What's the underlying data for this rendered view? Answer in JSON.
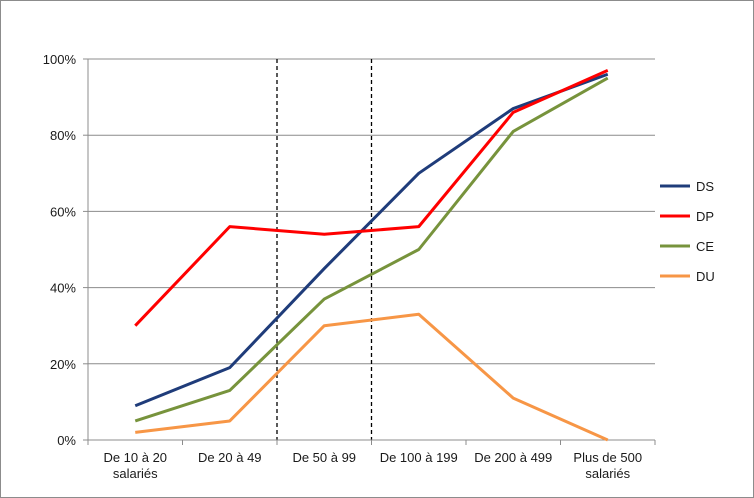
{
  "chart_data": {
    "type": "line",
    "title": "",
    "xlabel": "",
    "ylabel": "",
    "ylim": [
      0,
      100
    ],
    "y_ticks": [
      0,
      20,
      40,
      60,
      80,
      100
    ],
    "y_tick_suffix": "%",
    "grid": true,
    "legend_position": "right",
    "categories": [
      [
        "De 10 à 20",
        "salariés"
      ],
      [
        "De 20 à 49"
      ],
      [
        "De 50 à 99"
      ],
      [
        "De 100 à 199"
      ],
      [
        "De 200 à 499"
      ],
      [
        "Plus de 500",
        "salariés"
      ]
    ],
    "vertical_markers_between": [
      [
        1,
        2
      ],
      [
        2,
        3
      ]
    ],
    "series": [
      {
        "name": "DS",
        "color": "#1f3c7a",
        "values": [
          9,
          19,
          45,
          70,
          87,
          96
        ]
      },
      {
        "name": "DP",
        "color": "#ff0000",
        "values": [
          30,
          56,
          54,
          56,
          86,
          97
        ]
      },
      {
        "name": "CE",
        "color": "#77933c",
        "values": [
          5,
          13,
          37,
          50,
          81,
          95
        ]
      },
      {
        "name": "DU",
        "color": "#f79646",
        "values": [
          2,
          5,
          30,
          33,
          11,
          0
        ]
      }
    ]
  }
}
